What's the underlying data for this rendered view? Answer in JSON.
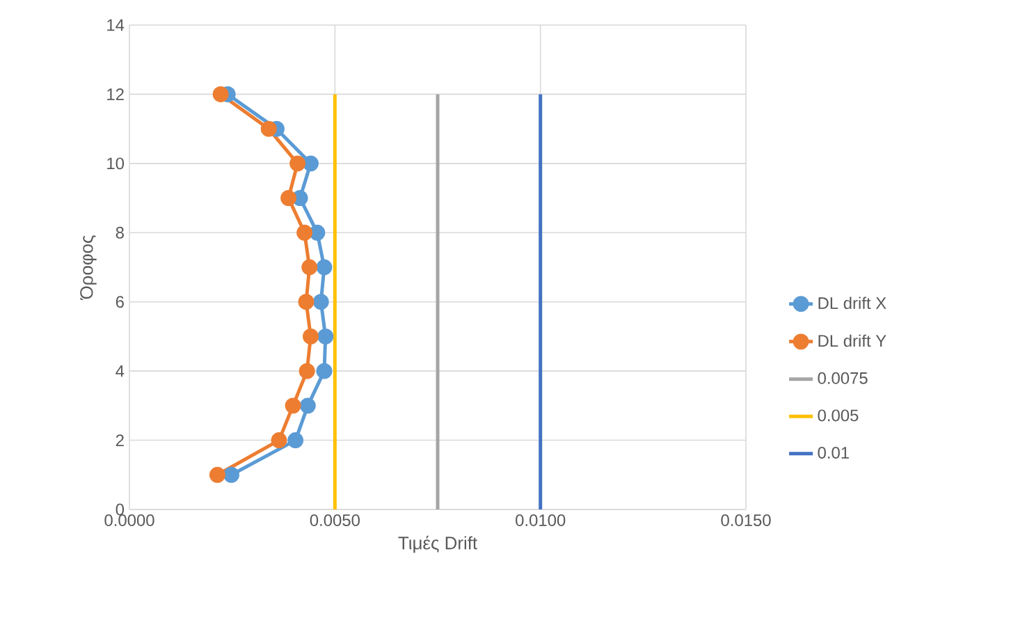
{
  "chart_data": {
    "type": "line",
    "xlabel": "Τιμές Drift",
    "ylabel": "Όροφος",
    "xlim": [
      0,
      0.015
    ],
    "xticks": [
      {
        "value": 0,
        "label": "0.0000"
      },
      {
        "value": 0.005,
        "label": "0.0050"
      },
      {
        "value": 0.01,
        "label": "0.0100"
      },
      {
        "value": 0.015,
        "label": "0.0150"
      }
    ],
    "ylim": [
      0,
      14
    ],
    "yticks": [
      0,
      2,
      4,
      6,
      8,
      10,
      12,
      14
    ],
    "grid": true,
    "legend": "right",
    "series": [
      {
        "name": "DL drift X",
        "color": "#5b9bd5",
        "marker": "circle",
        "x": [
          0.00248,
          0.00404,
          0.00434,
          0.00474,
          0.00477,
          0.00466,
          0.00474,
          0.00457,
          0.00415,
          0.00441,
          0.00358,
          0.00239
        ],
        "values": [
          1,
          2,
          3,
          4,
          5,
          6,
          7,
          8,
          9,
          10,
          11,
          12
        ]
      },
      {
        "name": "DL drift Y",
        "color": "#ed7d31",
        "marker": "circle",
        "x": [
          0.00214,
          0.00364,
          0.00398,
          0.00432,
          0.00441,
          0.0043,
          0.00438,
          0.00426,
          0.00387,
          0.00409,
          0.00339,
          0.00222
        ],
        "values": [
          1,
          2,
          3,
          4,
          5,
          6,
          7,
          8,
          9,
          10,
          11,
          12
        ]
      },
      {
        "name": "0.0075",
        "color": "#a5a5a5",
        "marker": "none",
        "x": [
          0.0075,
          0.0075
        ],
        "values": [
          0,
          12
        ]
      },
      {
        "name": "0.005",
        "color": "#ffc000",
        "marker": "none",
        "x": [
          0.005,
          0.005
        ],
        "values": [
          0,
          12
        ]
      },
      {
        "name": "0.01",
        "color": "#4472c4",
        "marker": "none",
        "x": [
          0.01,
          0.01
        ],
        "values": [
          0,
          12
        ]
      }
    ]
  }
}
